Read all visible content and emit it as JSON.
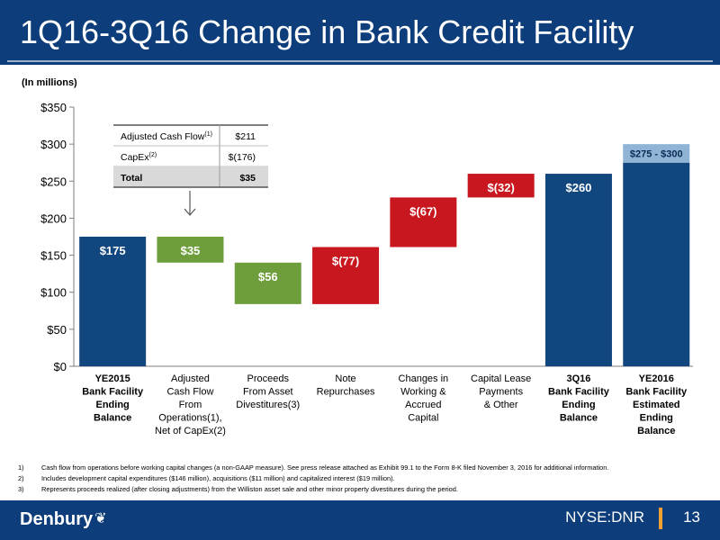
{
  "slide": {
    "title": "1Q16-3Q16 Change in Bank Credit Facility",
    "units": "(In millions)"
  },
  "colors": {
    "navy": "#12467f",
    "green": "#6e9d3c",
    "red": "#c8171e",
    "range": "#8fb4d6",
    "header": "#0d3d7a",
    "accent": "#f0a030"
  },
  "chart_data": {
    "type": "bar",
    "subtype": "waterfall",
    "ylim": [
      0,
      350
    ],
    "yticks": [
      "$0",
      "$50",
      "$100",
      "$150",
      "$200",
      "$250",
      "$300",
      "$350"
    ],
    "ytick_values": [
      0,
      50,
      100,
      150,
      200,
      250,
      300,
      350
    ],
    "grid": false,
    "categories": [
      [
        "YE2015",
        "Bank Facility",
        "Ending",
        "Balance"
      ],
      [
        "Adjusted",
        "Cash Flow",
        "From",
        "Operations(1),",
        "Net of CapEx(2)"
      ],
      [
        "Proceeds",
        "From Asset",
        "Divestitures(3)"
      ],
      [
        "Note",
        "Repurchases"
      ],
      [
        "Changes in",
        "Working &",
        "Accrued",
        "Capital"
      ],
      [
        "Capital Lease",
        "Payments",
        "& Other"
      ],
      [
        "3Q16",
        "Bank Facility",
        "Ending",
        "Balance"
      ],
      [
        "YE2016",
        "Bank Facility",
        "Estimated",
        "Ending",
        "Balance"
      ]
    ],
    "bars": [
      {
        "label": "$175",
        "bottom": 0,
        "top": 175,
        "color": "navy"
      },
      {
        "label": "$35",
        "bottom": 140,
        "top": 175,
        "color": "green"
      },
      {
        "label": "$56",
        "bottom": 84,
        "top": 140,
        "color": "green"
      },
      {
        "label": "$(77)",
        "bottom": 84,
        "top": 161,
        "color": "red"
      },
      {
        "label": "$(67)",
        "bottom": 161,
        "top": 228,
        "color": "red"
      },
      {
        "label": "$(32)",
        "bottom": 228,
        "top": 260,
        "color": "red"
      },
      {
        "label": "$260",
        "bottom": 0,
        "top": 260,
        "color": "navy"
      },
      {
        "label": "$275 - $300",
        "bottom": 0,
        "top": 275,
        "range_top": 300,
        "color": "navy"
      }
    ],
    "inset_table": {
      "rows": [
        {
          "label": "Adjusted Cash Flow",
          "sup": "(1)",
          "value": "$211"
        },
        {
          "label": "CapEx",
          "sup": "(2)",
          "value": "$(176)"
        },
        {
          "label": "Total",
          "sup": "",
          "value": "$35"
        }
      ]
    }
  },
  "footnotes": [
    {
      "num": "1)",
      "text": "Cash flow from operations before working capital changes (a non-GAAP measure). See press release attached as Exhibit 99.1 to the Form 8-K filed November 3, 2016 for additional information."
    },
    {
      "num": "2)",
      "text": "Includes development capital expenditures ($146 million), acquisitions ($11 million) and capitalized interest ($19 million)."
    },
    {
      "num": "3)",
      "text": "Represents proceeds realized (after closing adjustments) from the Williston asset sale and other minor property divestitures during the period."
    }
  ],
  "footer": {
    "logo": "Denbury",
    "ticker": "NYSE:DNR",
    "page": "13"
  }
}
